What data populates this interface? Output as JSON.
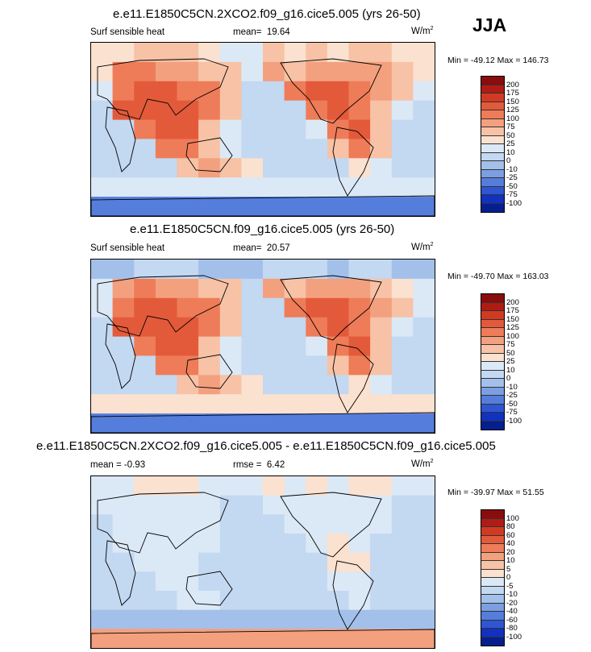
{
  "season": "JJA",
  "panels": [
    {
      "title": "e.e11.E1850C5CN.2XCO2.f09_g16.cice5.005 (yrs 26-50)",
      "left_label": "Surf sensible heat",
      "mean_label": "mean=",
      "mean_value": "19.64",
      "units": "W/m",
      "units_exp": "2",
      "minmax": "Min = -49.12 Max = 146.73",
      "levels": [
        "200",
        "175",
        "150",
        "125",
        "100",
        "75",
        "50",
        "25",
        "10",
        "0",
        "-10",
        "-25",
        "-50",
        "-75",
        "-100"
      ],
      "palette": [
        "#8a0d0d",
        "#b01c14",
        "#d13a22",
        "#e35a3a",
        "#ee7c58",
        "#f3a07f",
        "#f7c2a6",
        "#fbe1cf",
        "#dbe9f6",
        "#c3d8f1",
        "#a3c0ea",
        "#7c9fe2",
        "#557ddb",
        "#2f55d3",
        "#1131c0",
        "#061f8f"
      ],
      "cells": [
        [
          2,
          2,
          3,
          3,
          3,
          2,
          1,
          1,
          3,
          2,
          3,
          2,
          3,
          3,
          2,
          2
        ],
        [
          2,
          5,
          5,
          4,
          4,
          3,
          3,
          1,
          4,
          3,
          4,
          4,
          4,
          4,
          3,
          2
        ],
        [
          1,
          5,
          6,
          6,
          5,
          5,
          3,
          0,
          0,
          5,
          6,
          6,
          5,
          4,
          3,
          1
        ],
        [
          0,
          6,
          6,
          6,
          6,
          5,
          3,
          0,
          0,
          0,
          5,
          6,
          5,
          3,
          1,
          0
        ],
        [
          0,
          0,
          5,
          6,
          6,
          3,
          1,
          0,
          0,
          0,
          1,
          5,
          6,
          3,
          0,
          0
        ],
        [
          0,
          0,
          0,
          5,
          5,
          3,
          1,
          0,
          0,
          0,
          0,
          3,
          5,
          3,
          0,
          0
        ],
        [
          0,
          0,
          0,
          0,
          3,
          4,
          3,
          2,
          0,
          0,
          0,
          0,
          2,
          1,
          0,
          0
        ],
        [
          1,
          1,
          1,
          1,
          1,
          1,
          1,
          1,
          1,
          1,
          1,
          1,
          1,
          1,
          1,
          1
        ],
        [
          -3,
          -3,
          -3,
          -3,
          -3,
          -3,
          -3,
          -3,
          -3,
          -3,
          -3,
          -3,
          -3,
          -3,
          -3,
          -3
        ]
      ]
    },
    {
      "title": "e.e11.E1850C5CN.f09_g16.cice5.005 (yrs 26-50)",
      "left_label": "Surf sensible heat",
      "mean_label": "mean=",
      "mean_value": "20.57",
      "units": "W/m",
      "units_exp": "2",
      "minmax": "Min = -49.70 Max = 163.03",
      "levels": [
        "200",
        "175",
        "150",
        "125",
        "100",
        "75",
        "50",
        "25",
        "10",
        "0",
        "-10",
        "-25",
        "-50",
        "-75",
        "-100"
      ],
      "palette": [
        "#8a0d0d",
        "#b01c14",
        "#d13a22",
        "#e35a3a",
        "#ee7c58",
        "#f3a07f",
        "#f7c2a6",
        "#fbe1cf",
        "#dbe9f6",
        "#c3d8f1",
        "#a3c0ea",
        "#7c9fe2",
        "#557ddb",
        "#2f55d3",
        "#1131c0",
        "#061f8f"
      ],
      "cells": [
        [
          -1,
          -1,
          0,
          0,
          0,
          -1,
          -1,
          -1,
          0,
          0,
          0,
          -1,
          0,
          0,
          -1,
          -1
        ],
        [
          1,
          4,
          5,
          4,
          4,
          3,
          3,
          0,
          4,
          3,
          4,
          4,
          4,
          3,
          2,
          1
        ],
        [
          1,
          5,
          6,
          6,
          5,
          5,
          3,
          0,
          0,
          5,
          6,
          6,
          5,
          4,
          3,
          1
        ],
        [
          0,
          6,
          6,
          6,
          6,
          5,
          3,
          0,
          0,
          0,
          5,
          6,
          5,
          3,
          1,
          0
        ],
        [
          0,
          0,
          5,
          6,
          6,
          3,
          1,
          0,
          0,
          0,
          1,
          5,
          6,
          3,
          0,
          0
        ],
        [
          0,
          0,
          0,
          5,
          5,
          3,
          1,
          0,
          0,
          0,
          0,
          3,
          5,
          3,
          0,
          0
        ],
        [
          0,
          0,
          0,
          0,
          3,
          4,
          3,
          2,
          0,
          0,
          0,
          0,
          2,
          1,
          0,
          0
        ],
        [
          2,
          2,
          2,
          2,
          2,
          2,
          2,
          2,
          2,
          2,
          2,
          2,
          2,
          2,
          2,
          2
        ],
        [
          -3,
          -3,
          -3,
          -3,
          -3,
          -3,
          -3,
          -3,
          -3,
          -3,
          -3,
          -3,
          -3,
          -3,
          -3,
          -3
        ]
      ]
    },
    {
      "title": "e.e11.E1850C5CN.2XCO2.f09_g16.cice5.005 - e.e11.E1850C5CN.f09_g16.cice5.005",
      "left_label": "mean =  -0.93",
      "mean_label": "rmse =",
      "mean_value": "6.42",
      "units": "W/m",
      "units_exp": "2",
      "minmax": "Min = -39.97 Max = 51.55",
      "levels": [
        "100",
        "80",
        "60",
        "40",
        "20",
        "10",
        "5",
        "0",
        "-5",
        "-10",
        "-20",
        "-40",
        "-60",
        "-80",
        "-100"
      ],
      "palette": [
        "#8a0d0d",
        "#b01c14",
        "#d13a22",
        "#e35a3a",
        "#ee7c58",
        "#f3a07f",
        "#f7c2a6",
        "#fbe1cf",
        "#dbe9f6",
        "#c3d8f1",
        "#a3c0ea",
        "#7c9fe2",
        "#557ddb",
        "#2f55d3",
        "#1131c0",
        "#061f8f"
      ],
      "cells": [
        [
          1,
          1,
          2,
          2,
          2,
          1,
          1,
          1,
          2,
          1,
          2,
          1,
          2,
          2,
          1,
          1
        ],
        [
          1,
          1,
          1,
          1,
          1,
          1,
          0,
          0,
          1,
          1,
          1,
          1,
          1,
          1,
          0,
          0
        ],
        [
          0,
          1,
          1,
          1,
          1,
          1,
          0,
          0,
          0,
          1,
          1,
          1,
          1,
          1,
          0,
          0
        ],
        [
          0,
          1,
          1,
          1,
          1,
          1,
          0,
          0,
          0,
          0,
          1,
          2,
          1,
          0,
          0,
          0
        ],
        [
          0,
          0,
          1,
          1,
          1,
          0,
          0,
          0,
          0,
          0,
          0,
          2,
          2,
          0,
          0,
          0
        ],
        [
          0,
          0,
          0,
          1,
          1,
          0,
          0,
          0,
          0,
          0,
          0,
          1,
          1,
          0,
          0,
          0
        ],
        [
          0,
          0,
          0,
          0,
          1,
          1,
          0,
          0,
          0,
          0,
          0,
          0,
          1,
          0,
          0,
          0
        ],
        [
          -1,
          -1,
          -1,
          -1,
          -1,
          -1,
          -1,
          -1,
          -1,
          -1,
          -1,
          -1,
          -1,
          -1,
          -1,
          -1
        ],
        [
          4,
          4,
          4,
          4,
          4,
          4,
          4,
          4,
          4,
          4,
          4,
          4,
          4,
          4,
          4,
          4
        ]
      ]
    }
  ]
}
